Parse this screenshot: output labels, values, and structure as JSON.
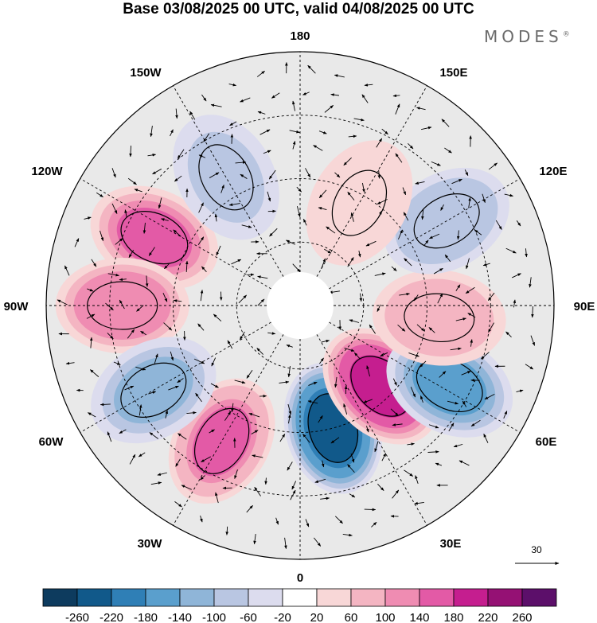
{
  "title": "Base 03/08/2025 00 UTC, valid 04/08/2025 00 UTC",
  "brand": "MODES",
  "brand_mark": "®",
  "meridian_labels": [
    "180",
    "150E",
    "120E",
    "90E",
    "60E",
    "30E",
    "0",
    "30W",
    "60W",
    "90W",
    "120W",
    "150W"
  ],
  "reference_vector": {
    "label": "30"
  },
  "colorbar": {
    "ticks": [
      "-260",
      "-220",
      "-180",
      "-140",
      "-100",
      "-60",
      "-20",
      "20",
      "60",
      "100",
      "140",
      "180",
      "220",
      "260"
    ],
    "colors": [
      "#0d3b5e",
      "#11598a",
      "#2f7fb6",
      "#5a9fcd",
      "#8fb5d8",
      "#b9c6e2",
      "#dcdcee",
      "#ffffff",
      "#f8d7d7",
      "#f4b5c2",
      "#ef8cb2",
      "#e35aa6",
      "#c51e8f",
      "#951174",
      "#5c0f6a"
    ]
  },
  "anomalies": [
    {
      "lon": 15,
      "colat": 30,
      "value": -260
    },
    {
      "lon": 45,
      "colat": 27,
      "value": 230
    },
    {
      "lon": 62,
      "colat": 40,
      "value": -160
    },
    {
      "lon": 85,
      "colat": 33,
      "value": 110
    },
    {
      "lon": 120,
      "colat": 40,
      "value": -100
    },
    {
      "lon": 150,
      "colat": 28,
      "value": 70
    },
    {
      "lon": -30,
      "colat": 37,
      "value": 180
    },
    {
      "lon": -115,
      "colat": 38,
      "value": 170
    },
    {
      "lon": -90,
      "colat": 42,
      "value": 150
    },
    {
      "lon": -60,
      "colat": 40,
      "value": -120
    },
    {
      "lon": -150,
      "colat": 35,
      "value": -90
    }
  ]
}
